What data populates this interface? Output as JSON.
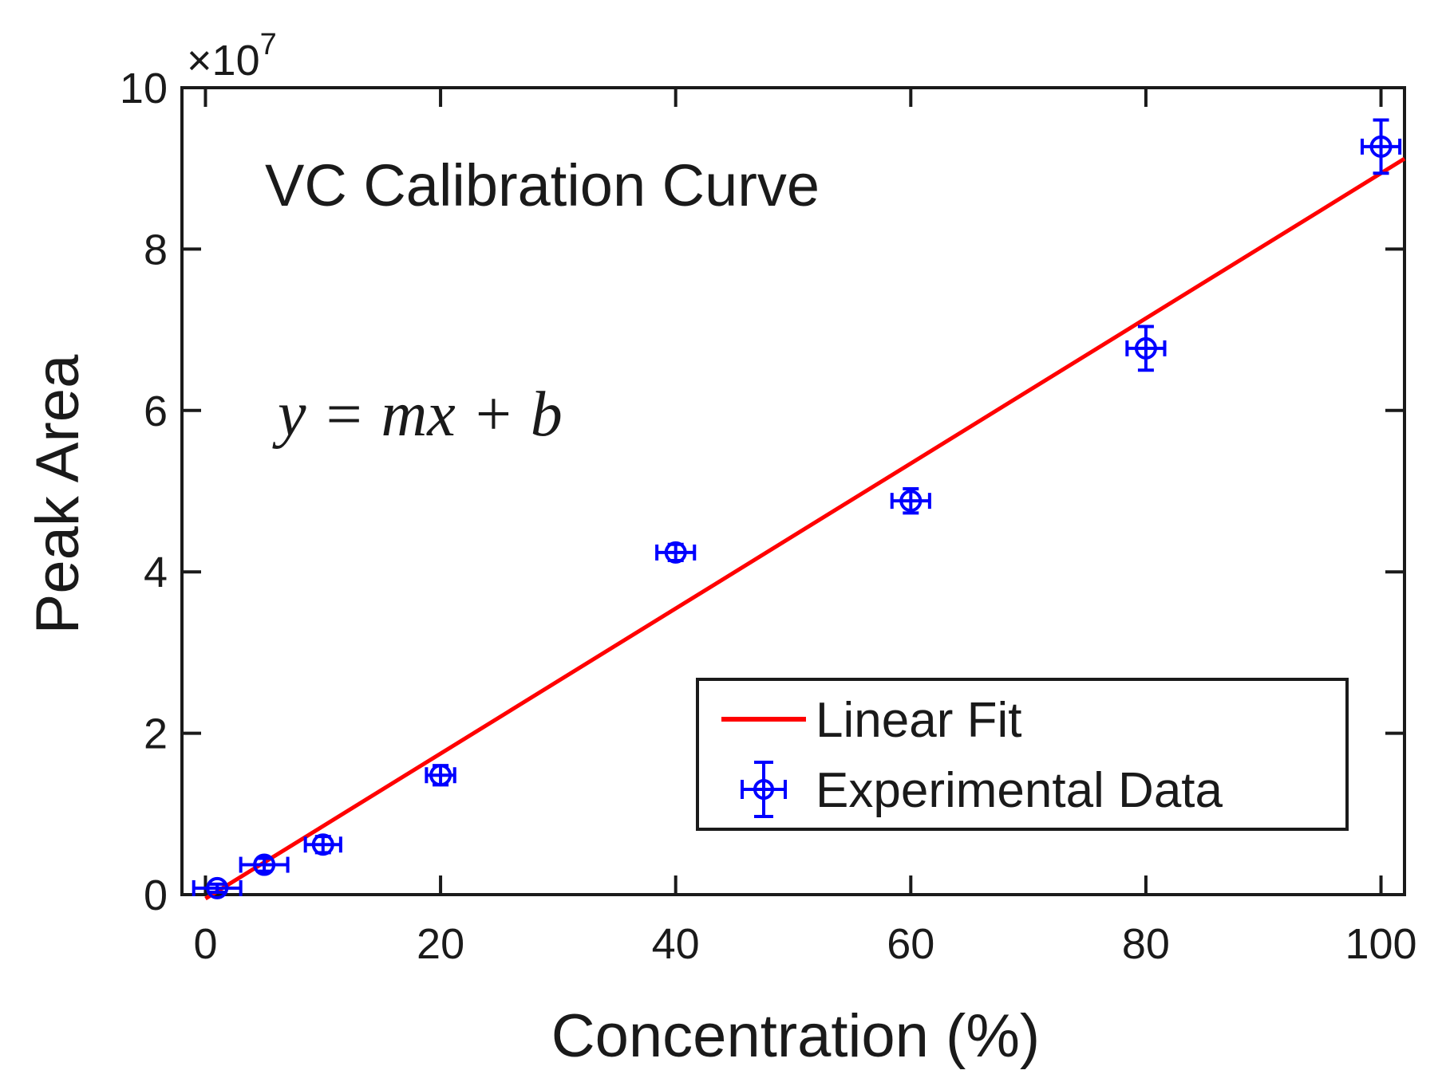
{
  "chart_data": {
    "type": "scatter",
    "annotation_title": "VC Calibration Curve",
    "equation": "y = mx + b",
    "xlabel": "Concentration (%)",
    "ylabel": "Peak Area",
    "y_scale_label": "×10",
    "y_scale_exponent": "7",
    "xlim": [
      -2,
      102
    ],
    "ylim": [
      0,
      10
    ],
    "x_ticks": [
      0,
      20,
      40,
      60,
      80,
      100
    ],
    "x_tick_labels": [
      "0",
      "20",
      "40",
      "60",
      "80",
      "100"
    ],
    "y_ticks": [
      0,
      2,
      4,
      6,
      8,
      10
    ],
    "y_tick_labels": [
      "0",
      "2",
      "4",
      "6",
      "8",
      "10"
    ],
    "grid": false,
    "legend_position": "bottom-right",
    "series": [
      {
        "name": "Linear Fit",
        "kind": "line",
        "color": "#ff0000",
        "x": [
          0,
          102
        ],
        "y": [
          -0.05,
          9.12
        ]
      },
      {
        "name": "Experimental Data",
        "kind": "errorbar",
        "color": "#0000ff",
        "x": [
          1,
          5,
          10,
          20,
          40,
          60,
          80,
          100
        ],
        "y": [
          0.08,
          0.37,
          0.62,
          1.48,
          4.24,
          4.88,
          6.77,
          9.27
        ],
        "x_err": [
          2,
          2,
          1.5,
          1.2,
          1.6,
          1.6,
          1.6,
          1.6
        ],
        "y_err": [
          0.05,
          0.08,
          0.1,
          0.12,
          0.1,
          0.15,
          0.27,
          0.33
        ]
      }
    ]
  }
}
